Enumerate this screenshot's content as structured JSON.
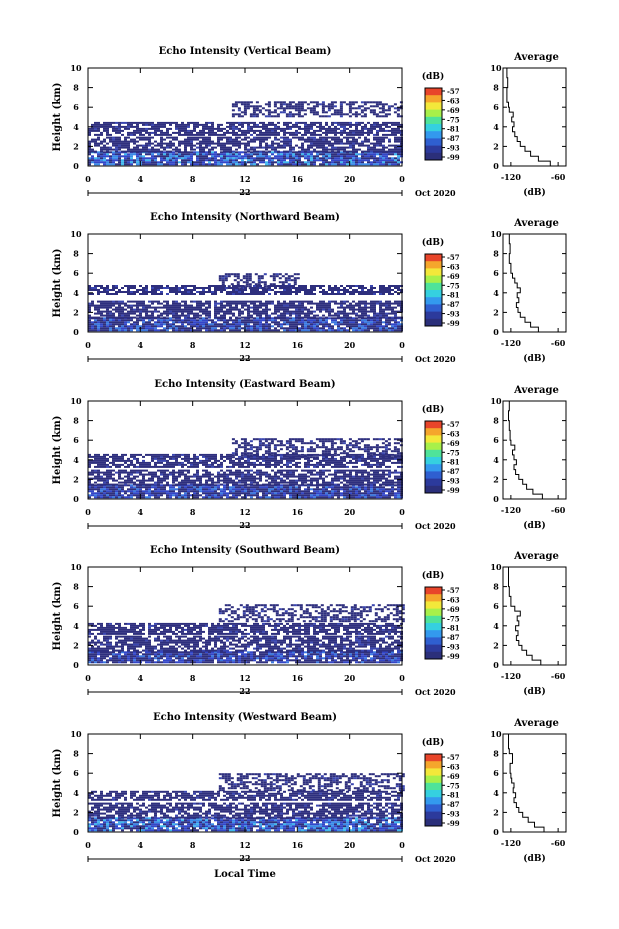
{
  "chart_data": [
    {
      "type": "heatmap",
      "title": "Echo Intensity (Vertical Beam)",
      "ylabel": "Height (km)",
      "xlabel": "",
      "x_ticks": [
        "0",
        "4",
        "8",
        "12",
        "16",
        "20",
        "0"
      ],
      "y_ticks": [
        "0",
        "2",
        "4",
        "6",
        "8",
        "10"
      ],
      "xlim": [
        0,
        24
      ],
      "ylim": [
        0,
        10
      ],
      "date_label": "22",
      "month_label": "Oct 2020",
      "colorbar": {
        "label": "(dB)",
        "ticks": [
          "-57",
          "-63",
          "-69",
          "-75",
          "-81",
          "-87",
          "-93",
          "-99"
        ]
      },
      "layers": [
        {
          "t0": 0,
          "t1": 24,
          "h0": 0.2,
          "h1": 1.5,
          "level": "strong"
        },
        {
          "t0": 0,
          "t1": 24,
          "h0": 1.5,
          "h1": 3.0,
          "level": "weak"
        },
        {
          "t0": 0,
          "t1": 24,
          "h0": 3.2,
          "h1": 4.5,
          "level": "weak"
        },
        {
          "t0": 11,
          "t1": 24,
          "h0": 5.0,
          "h1": 6.6,
          "level": "weak"
        }
      ],
      "average": {
        "title": "Average",
        "xlabel": "(dB)",
        "x_ticks": [
          "-120",
          "-60"
        ],
        "xlim": [
          -130,
          -50
        ],
        "y_ticks": [
          "0",
          "2",
          "4",
          "6",
          "8",
          "10"
        ],
        "profile": [
          [
            0,
            -62
          ],
          [
            0.5,
            -70
          ],
          [
            1,
            -85
          ],
          [
            1.5,
            -95
          ],
          [
            2,
            -102
          ],
          [
            2.5,
            -108
          ],
          [
            3,
            -112
          ],
          [
            3.5,
            -115
          ],
          [
            4,
            -118
          ],
          [
            4.5,
            -116
          ],
          [
            5,
            -119
          ],
          [
            5.5,
            -117
          ],
          [
            6,
            -122
          ],
          [
            6.5,
            -123
          ],
          [
            7,
            -125
          ],
          [
            8,
            -125
          ],
          [
            9,
            -124
          ],
          [
            10,
            -125
          ]
        ]
      }
    },
    {
      "type": "heatmap",
      "title": "Echo Intensity (Northward Beam)",
      "ylabel": "Height (km)",
      "xlabel": "",
      "x_ticks": [
        "0",
        "4",
        "8",
        "12",
        "16",
        "20",
        "0"
      ],
      "y_ticks": [
        "0",
        "2",
        "4",
        "6",
        "8",
        "10"
      ],
      "xlim": [
        0,
        24
      ],
      "ylim": [
        0,
        10
      ],
      "date_label": "22",
      "month_label": "Oct 2020",
      "colorbar": {
        "label": "(dB)",
        "ticks": [
          "-57",
          "-63",
          "-69",
          "-75",
          "-81",
          "-87",
          "-93",
          "-99"
        ]
      },
      "layers": [
        {
          "t0": 0,
          "t1": 24,
          "h0": 0.2,
          "h1": 1.5,
          "level": "medium"
        },
        {
          "t0": 0,
          "t1": 24,
          "h0": 1.5,
          "h1": 3.2,
          "level": "weak"
        },
        {
          "t0": 0,
          "t1": 24,
          "h0": 3.8,
          "h1": 4.8,
          "level": "weak"
        },
        {
          "t0": 10,
          "t1": 16,
          "h0": 4.5,
          "h1": 6.0,
          "level": "weak"
        }
      ],
      "average": {
        "title": "Average",
        "xlabel": "(dB)",
        "x_ticks": [
          "-120",
          "-60"
        ],
        "xlim": [
          -130,
          -50
        ],
        "y_ticks": [
          "0",
          "2",
          "4",
          "6",
          "8",
          "10"
        ],
        "profile": [
          [
            0,
            -72
          ],
          [
            0.5,
            -85
          ],
          [
            1,
            -95
          ],
          [
            1.5,
            -102
          ],
          [
            2,
            -108
          ],
          [
            2.5,
            -111
          ],
          [
            3,
            -113
          ],
          [
            3.5,
            -110
          ],
          [
            4,
            -112
          ],
          [
            4.5,
            -108
          ],
          [
            5,
            -112
          ],
          [
            5.5,
            -115
          ],
          [
            6,
            -118
          ],
          [
            7,
            -120
          ],
          [
            8,
            -122
          ],
          [
            9,
            -121
          ],
          [
            10,
            -122
          ]
        ]
      }
    },
    {
      "type": "heatmap",
      "title": "Echo Intensity (Eastward Beam)",
      "ylabel": "Height (km)",
      "xlabel": "",
      "x_ticks": [
        "0",
        "4",
        "8",
        "12",
        "16",
        "20",
        "0"
      ],
      "y_ticks": [
        "0",
        "2",
        "4",
        "6",
        "8",
        "10"
      ],
      "xlim": [
        0,
        24
      ],
      "ylim": [
        0,
        10
      ],
      "date_label": "22",
      "month_label": "Oct 2020",
      "colorbar": {
        "label": "(dB)",
        "ticks": [
          "-57",
          "-63",
          "-69",
          "-75",
          "-81",
          "-87",
          "-93",
          "-99"
        ]
      },
      "layers": [
        {
          "t0": 0,
          "t1": 24,
          "h0": 0.2,
          "h1": 1.5,
          "level": "medium"
        },
        {
          "t0": 0,
          "t1": 24,
          "h0": 1.5,
          "h1": 3.0,
          "level": "weak"
        },
        {
          "t0": 0,
          "t1": 24,
          "h0": 3.3,
          "h1": 4.6,
          "level": "weak"
        },
        {
          "t0": 11,
          "t1": 24,
          "h0": 4.2,
          "h1": 6.2,
          "level": "weak"
        }
      ],
      "average": {
        "title": "Average",
        "xlabel": "(dB)",
        "x_ticks": [
          "-120",
          "-60"
        ],
        "xlim": [
          -130,
          -50
        ],
        "y_ticks": [
          "0",
          "2",
          "4",
          "6",
          "8",
          "10"
        ],
        "profile": [
          [
            0,
            -65
          ],
          [
            0.5,
            -80
          ],
          [
            1,
            -92
          ],
          [
            1.5,
            -100
          ],
          [
            2,
            -105
          ],
          [
            2.5,
            -110
          ],
          [
            3,
            -114
          ],
          [
            3.5,
            -116
          ],
          [
            4,
            -113
          ],
          [
            4.5,
            -116
          ],
          [
            5,
            -118
          ],
          [
            5.5,
            -115
          ],
          [
            6,
            -120
          ],
          [
            7,
            -121
          ],
          [
            8,
            -122
          ],
          [
            9,
            -123
          ],
          [
            10,
            -122
          ]
        ]
      }
    },
    {
      "type": "heatmap",
      "title": "Echo Intensity (Southward Beam)",
      "ylabel": "Height (km)",
      "xlabel": "",
      "x_ticks": [
        "0",
        "4",
        "8",
        "12",
        "16",
        "20",
        "0"
      ],
      "y_ticks": [
        "0",
        "2",
        "4",
        "6",
        "8",
        "10"
      ],
      "xlim": [
        0,
        24
      ],
      "ylim": [
        0,
        10
      ],
      "date_label": "22",
      "month_label": "Oct 2020",
      "colorbar": {
        "label": "(dB)",
        "ticks": [
          "-57",
          "-63",
          "-69",
          "-75",
          "-81",
          "-87",
          "-93",
          "-99"
        ]
      },
      "layers": [
        {
          "t0": 0,
          "t1": 24,
          "h0": 0.2,
          "h1": 1.4,
          "level": "medium"
        },
        {
          "t0": 0,
          "t1": 24,
          "h0": 1.4,
          "h1": 3.0,
          "level": "weak"
        },
        {
          "t0": 0,
          "t1": 24,
          "h0": 3.2,
          "h1": 4.3,
          "level": "weak"
        },
        {
          "t0": 10,
          "t1": 24,
          "h0": 4.5,
          "h1": 6.2,
          "level": "weak"
        }
      ],
      "average": {
        "title": "Average",
        "xlabel": "(dB)",
        "x_ticks": [
          "-120",
          "-60"
        ],
        "xlim": [
          -130,
          -50
        ],
        "y_ticks": [
          "0",
          "2",
          "4",
          "6",
          "8",
          "10"
        ],
        "profile": [
          [
            0,
            -68
          ],
          [
            0.5,
            -82
          ],
          [
            1,
            -93
          ],
          [
            1.5,
            -100
          ],
          [
            2,
            -106
          ],
          [
            2.5,
            -110
          ],
          [
            3,
            -113
          ],
          [
            3.5,
            -111
          ],
          [
            4,
            -114
          ],
          [
            4.5,
            -110
          ],
          [
            5,
            -112
          ],
          [
            5.5,
            -108
          ],
          [
            6,
            -115
          ],
          [
            7,
            -120
          ],
          [
            8,
            -122
          ],
          [
            9,
            -123
          ],
          [
            10,
            -123
          ]
        ]
      }
    },
    {
      "type": "heatmap",
      "title": "Echo Intensity (Westward Beam)",
      "ylabel": "Height (km)",
      "xlabel": "Local Time",
      "x_ticks": [
        "0",
        "4",
        "8",
        "12",
        "16",
        "20",
        "0"
      ],
      "y_ticks": [
        "0",
        "2",
        "4",
        "6",
        "8",
        "10"
      ],
      "xlim": [
        0,
        24
      ],
      "ylim": [
        0,
        10
      ],
      "date_label": "22",
      "month_label": "Oct 2020",
      "colorbar": {
        "label": "(dB)",
        "ticks": [
          "-57",
          "-63",
          "-69",
          "-75",
          "-81",
          "-87",
          "-93",
          "-99"
        ]
      },
      "layers": [
        {
          "t0": 0,
          "t1": 24,
          "h0": 0.2,
          "h1": 1.5,
          "level": "strong"
        },
        {
          "t0": 0,
          "t1": 24,
          "h0": 1.5,
          "h1": 3.0,
          "level": "weak"
        },
        {
          "t0": 0,
          "t1": 24,
          "h0": 3.3,
          "h1": 4.2,
          "level": "weak"
        },
        {
          "t0": 10,
          "t1": 24,
          "h0": 4.2,
          "h1": 6.0,
          "level": "weak"
        }
      ],
      "average": {
        "title": "Average",
        "xlabel": "(dB)",
        "x_ticks": [
          "-120",
          "-60"
        ],
        "xlim": [
          -130,
          -50
        ],
        "y_ticks": [
          "0",
          "2",
          "4",
          "6",
          "8",
          "10"
        ],
        "profile": [
          [
            0,
            -62
          ],
          [
            0.5,
            -78
          ],
          [
            1,
            -90
          ],
          [
            1.5,
            -98
          ],
          [
            2,
            -105
          ],
          [
            2.5,
            -110
          ],
          [
            3,
            -113
          ],
          [
            3.5,
            -116
          ],
          [
            4,
            -114
          ],
          [
            4.5,
            -117
          ],
          [
            5,
            -116
          ],
          [
            5.5,
            -119
          ],
          [
            6,
            -120
          ],
          [
            7,
            -121
          ],
          [
            8,
            -118
          ],
          [
            8.5,
            -122
          ],
          [
            9,
            -123
          ],
          [
            10,
            -123
          ]
        ]
      }
    }
  ]
}
